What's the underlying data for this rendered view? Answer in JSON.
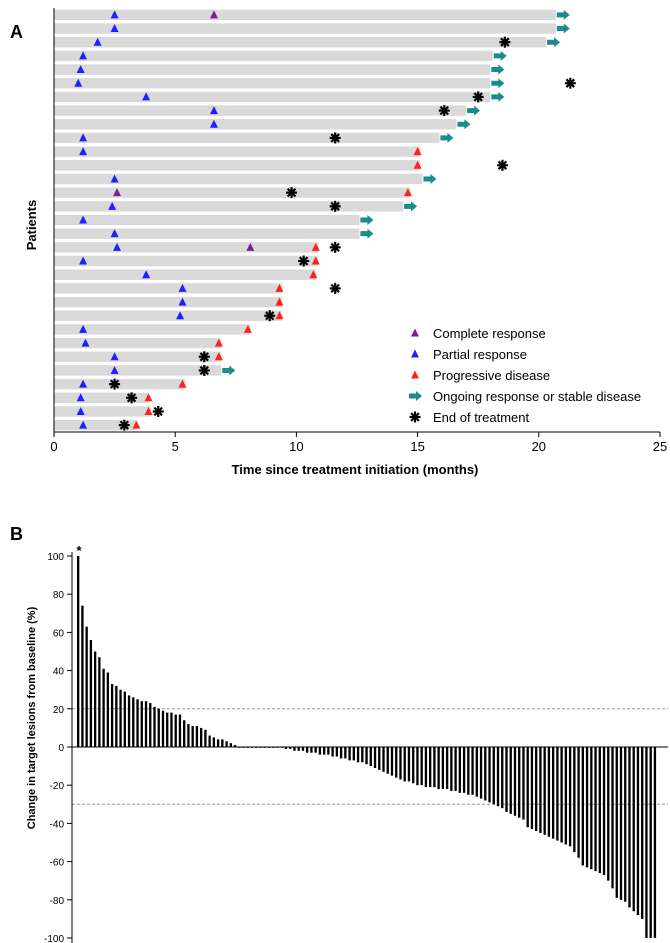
{
  "colors": {
    "bar_bg": "#d9d9d9",
    "complete": "#7b1f8f",
    "partial": "#1f1fff",
    "progressive": "#ff2020",
    "ongoing": "#1a8c8c",
    "end": "#000000",
    "waterfall": "#000000",
    "threshold_line": "#999999"
  },
  "chart_data": [
    {
      "panel_label": "A",
      "type": "swimmer",
      "xlabel": "Time since treatment initiation (months)",
      "ylabel": "Patients",
      "xlim": [
        0,
        25
      ],
      "xticks": [
        0,
        5,
        10,
        15,
        20,
        25
      ],
      "legend_position": "bottom-right",
      "legend": [
        {
          "key": "complete",
          "label": "Complete response",
          "marker": "triangle"
        },
        {
          "key": "partial",
          "label": "Partial response",
          "marker": "triangle"
        },
        {
          "key": "progressive",
          "label": "Progressive disease",
          "marker": "triangle"
        },
        {
          "key": "ongoing",
          "label": "Ongoing response or stable disease",
          "marker": "arrow"
        },
        {
          "key": "end",
          "label": "End of treatment",
          "marker": "asterisk"
        }
      ],
      "patients": [
        {
          "duration": 20.7,
          "events": [
            {
              "t": 2.5,
              "type": "partial"
            },
            {
              "t": 6.6,
              "type": "complete"
            }
          ],
          "ongoing": true
        },
        {
          "duration": 20.7,
          "events": [
            {
              "t": 2.5,
              "type": "partial"
            }
          ],
          "ongoing": true
        },
        {
          "duration": 20.3,
          "events": [
            {
              "t": 1.8,
              "type": "partial"
            }
          ],
          "ongoing": true,
          "end": 18.6
        },
        {
          "duration": 18.1,
          "events": [
            {
              "t": 1.2,
              "type": "partial"
            }
          ],
          "ongoing": true
        },
        {
          "duration": 18.0,
          "events": [
            {
              "t": 1.1,
              "type": "partial"
            }
          ],
          "ongoing": true
        },
        {
          "duration": 18.0,
          "events": [
            {
              "t": 1.0,
              "type": "partial"
            }
          ],
          "ongoing": true,
          "end": 21.3
        },
        {
          "duration": 18.0,
          "events": [
            {
              "t": 3.8,
              "type": "partial"
            }
          ],
          "ongoing": true,
          "end": 17.5
        },
        {
          "duration": 17.0,
          "events": [
            {
              "t": 6.6,
              "type": "partial"
            }
          ],
          "ongoing": true,
          "end": 16.1
        },
        {
          "duration": 16.6,
          "events": [
            {
              "t": 6.6,
              "type": "partial"
            }
          ],
          "ongoing": true
        },
        {
          "duration": 15.9,
          "events": [
            {
              "t": 1.2,
              "type": "partial"
            }
          ],
          "ongoing": true,
          "end": 11.6
        },
        {
          "duration": 15.1,
          "events": [
            {
              "t": 1.2,
              "type": "partial"
            },
            {
              "t": 15.0,
              "type": "progressive"
            }
          ],
          "ongoing": false
        },
        {
          "duration": 15.1,
          "events": [
            {
              "t": 15.0,
              "type": "progressive"
            }
          ],
          "ongoing": false,
          "end": 18.5
        },
        {
          "duration": 15.2,
          "events": [
            {
              "t": 2.5,
              "type": "partial"
            }
          ],
          "ongoing": true
        },
        {
          "duration": 14.7,
          "events": [
            {
              "t": 2.6,
              "type": "complete"
            },
            {
              "t": 14.6,
              "type": "progressive"
            }
          ],
          "ongoing": false,
          "end": 9.8
        },
        {
          "duration": 14.4,
          "events": [
            {
              "t": 2.4,
              "type": "partial"
            }
          ],
          "ongoing": true,
          "end": 11.6
        },
        {
          "duration": 12.6,
          "events": [
            {
              "t": 1.2,
              "type": "partial"
            }
          ],
          "ongoing": true
        },
        {
          "duration": 12.6,
          "events": [
            {
              "t": 2.5,
              "type": "partial"
            }
          ],
          "ongoing": true
        },
        {
          "duration": 10.9,
          "events": [
            {
              "t": 2.6,
              "type": "partial"
            },
            {
              "t": 8.1,
              "type": "complete"
            },
            {
              "t": 10.8,
              "type": "progressive"
            }
          ],
          "ongoing": false,
          "end": 11.6
        },
        {
          "duration": 10.9,
          "events": [
            {
              "t": 1.2,
              "type": "partial"
            },
            {
              "t": 10.8,
              "type": "progressive"
            }
          ],
          "ongoing": false,
          "end": 10.3
        },
        {
          "duration": 10.8,
          "events": [
            {
              "t": 3.8,
              "type": "partial"
            },
            {
              "t": 10.7,
              "type": "progressive"
            }
          ],
          "ongoing": false
        },
        {
          "duration": 9.4,
          "events": [
            {
              "t": 5.3,
              "type": "partial"
            },
            {
              "t": 9.3,
              "type": "progressive"
            }
          ],
          "ongoing": false,
          "end": 11.6
        },
        {
          "duration": 9.4,
          "events": [
            {
              "t": 5.3,
              "type": "partial"
            },
            {
              "t": 9.3,
              "type": "progressive"
            }
          ],
          "ongoing": false
        },
        {
          "duration": 9.4,
          "events": [
            {
              "t": 5.2,
              "type": "partial"
            },
            {
              "t": 9.3,
              "type": "progressive"
            }
          ],
          "ongoing": false,
          "end": 8.9
        },
        {
          "duration": 8.1,
          "events": [
            {
              "t": 1.2,
              "type": "partial"
            },
            {
              "t": 8.0,
              "type": "progressive"
            }
          ],
          "ongoing": false
        },
        {
          "duration": 6.9,
          "events": [
            {
              "t": 1.3,
              "type": "partial"
            },
            {
              "t": 6.8,
              "type": "progressive"
            }
          ],
          "ongoing": false
        },
        {
          "duration": 6.9,
          "events": [
            {
              "t": 2.5,
              "type": "partial"
            },
            {
              "t": 6.8,
              "type": "progressive"
            }
          ],
          "ongoing": false,
          "end": 6.2
        },
        {
          "duration": 6.9,
          "events": [
            {
              "t": 2.5,
              "type": "partial"
            }
          ],
          "ongoing": true,
          "end": 6.2
        },
        {
          "duration": 5.4,
          "events": [
            {
              "t": 1.2,
              "type": "partial"
            },
            {
              "t": 5.3,
              "type": "progressive"
            }
          ],
          "ongoing": false,
          "end": 2.5
        },
        {
          "duration": 3.9,
          "events": [
            {
              "t": 1.1,
              "type": "partial"
            },
            {
              "t": 3.9,
              "type": "progressive"
            }
          ],
          "ongoing": false,
          "end": 3.2
        },
        {
          "duration": 4.0,
          "events": [
            {
              "t": 1.1,
              "type": "partial"
            },
            {
              "t": 3.9,
              "type": "progressive"
            }
          ],
          "ongoing": false,
          "end": 4.3
        },
        {
          "duration": 3.4,
          "events": [
            {
              "t": 1.2,
              "type": "partial"
            },
            {
              "t": 3.4,
              "type": "progressive"
            }
          ],
          "ongoing": false,
          "end": 2.9
        }
      ]
    },
    {
      "panel_label": "B",
      "type": "bar",
      "ylabel": "Change in target lesions from baseline (%)",
      "ylim": [
        -100,
        100
      ],
      "yticks": [
        100,
        80,
        60,
        40,
        20,
        0,
        -20,
        -40,
        -60,
        -80,
        -100
      ],
      "reference_lines": [
        20,
        -30
      ],
      "annotation": "*",
      "values": [
        100,
        74,
        63,
        56,
        50,
        47,
        41,
        39,
        33,
        32,
        30,
        29,
        27,
        26,
        25,
        24,
        24,
        23,
        21,
        20,
        19,
        18,
        18,
        17,
        17,
        14,
        12,
        11,
        11,
        10,
        9,
        6,
        5,
        4,
        4,
        3,
        2,
        1,
        0,
        0,
        0,
        0,
        0,
        0,
        0,
        0,
        0,
        0,
        0,
        -1,
        -1,
        -2,
        -2,
        -2,
        -3,
        -3,
        -3,
        -4,
        -4,
        -4,
        -5,
        -5,
        -6,
        -6,
        -7,
        -7,
        -8,
        -8,
        -9,
        -10,
        -11,
        -12,
        -13,
        -14,
        -15,
        -16,
        -17,
        -18,
        -18,
        -19,
        -20,
        -20,
        -21,
        -21,
        -21,
        -22,
        -22,
        -22,
        -23,
        -23,
        -24,
        -24,
        -25,
        -25,
        -26,
        -27,
        -28,
        -29,
        -30,
        -31,
        -32,
        -34,
        -35,
        -36,
        -37,
        -38,
        -42,
        -43,
        -44,
        -45,
        -46,
        -47,
        -48,
        -49,
        -50,
        -51,
        -52,
        -55,
        -58,
        -62,
        -63,
        -64,
        -65,
        -66,
        -67,
        -70,
        -74,
        -79,
        -80,
        -81,
        -84,
        -86,
        -88,
        -90,
        -100,
        -100,
        -100
      ]
    }
  ]
}
